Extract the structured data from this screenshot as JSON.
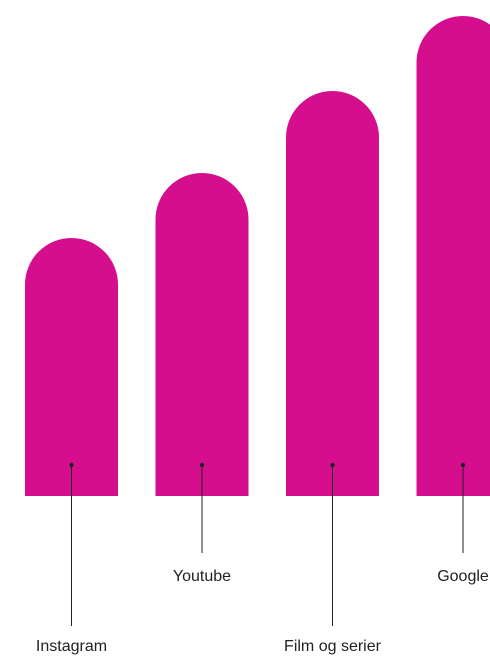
{
  "chart_data": {
    "type": "bar",
    "categories": [
      "Instagram",
      "Youtube",
      "Film og serier",
      "Google"
    ],
    "values": [
      258,
      323,
      405,
      480
    ],
    "ylim": [
      0,
      480
    ],
    "grid": false,
    "legend": "none",
    "bar_color": "#D40E8C",
    "leader_color": "#222222"
  }
}
